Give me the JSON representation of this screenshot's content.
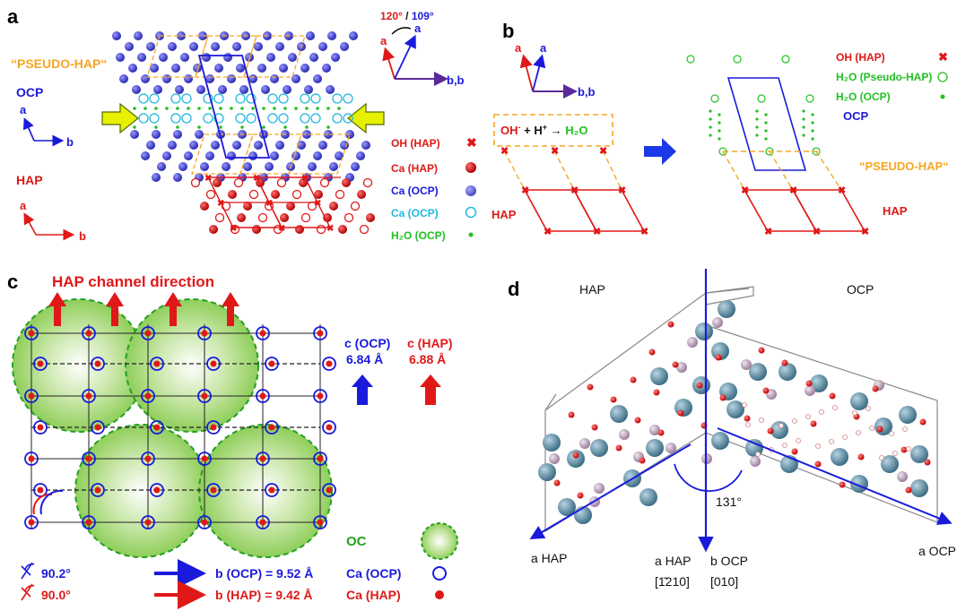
{
  "colors": {
    "ocp": "#1a1adc",
    "hap": "#e01818",
    "water": "#22c022",
    "pseudo": "#f5a623",
    "cyan": "#20b8e0",
    "green_sphere": "#8fce5a",
    "gray_atom": "#5e91a8",
    "pink_atom": "#c8b0c8"
  },
  "panel_a": {
    "label": "a",
    "pseudo_hap": "“PSEUDO-HAP“",
    "ocp": "OCP",
    "hap": "HAP",
    "axis_a": "a",
    "axis_b": "b",
    "angle_red": "120°",
    "angle_sep": " / ",
    "angle_blue": "109°",
    "axis_bb": "b,b",
    "legend": [
      {
        "text": "OH (HAP)",
        "color": "#e01818",
        "symbol": "x-icon"
      },
      {
        "text": "Ca (HAP)",
        "color": "#e01818",
        "symbol": "filled-circle-icon"
      },
      {
        "text": "Ca (OCP)",
        "color": "#1a1adc",
        "symbol": "blue-ball-icon"
      },
      {
        "text": "Ca (OCP)",
        "color": "#20b8e0",
        "symbol": "open-circle-icon"
      },
      {
        "text": "H₂O (OCP)",
        "color": "#22c022",
        "symbol": "dot-icon"
      }
    ]
  },
  "panel_b": {
    "label": "b",
    "axis_a1": "a",
    "axis_a2": "a",
    "axis_bb": "b,b",
    "reaction_oh": "OH",
    "reaction_minus": "-",
    "reaction_plus": " + H",
    "reaction_hplus": "+",
    "reaction_arrow": " → ",
    "reaction_h2o": "H₂O",
    "hap": "HAP",
    "hap2": "HAP",
    "ocp": "OCP",
    "pseudo_hap": "“PSEUDO-HAP“",
    "legend": [
      {
        "text": "OH (HAP)",
        "color": "#e01818"
      },
      {
        "text": "H₂O (Pseudo-HAP)",
        "color": "#22c022"
      },
      {
        "text": "H₂O (OCP)",
        "color": "#22c022"
      }
    ]
  },
  "panel_c": {
    "label": "c",
    "title": "HAP channel direction",
    "c_ocp": "c (OCP)",
    "c_ocp_val": "6.84 Å",
    "c_hap": "c (HAP)",
    "c_hap_val": "6.88 Å",
    "oc": "OC",
    "ca_ocp": "Ca (OCP)",
    "ca_hap": "Ca (HAP)",
    "angle_ocp": "90.2°",
    "angle_hap": "90.0°",
    "b_ocp": "b (OCP) = 9.52 Å",
    "b_hap": "b (HAP) = 9.42 Å"
  },
  "panel_d": {
    "label": "d",
    "hap": "HAP",
    "ocp": "OCP",
    "angle": "131°",
    "a_hap_left": "a HAP",
    "a_hap_center": "a HAP",
    "b_ocp_center": "b OCP",
    "miller_hap": "[1̄210]",
    "miller_ocp": "[010]",
    "a_ocp": "a OCP"
  }
}
